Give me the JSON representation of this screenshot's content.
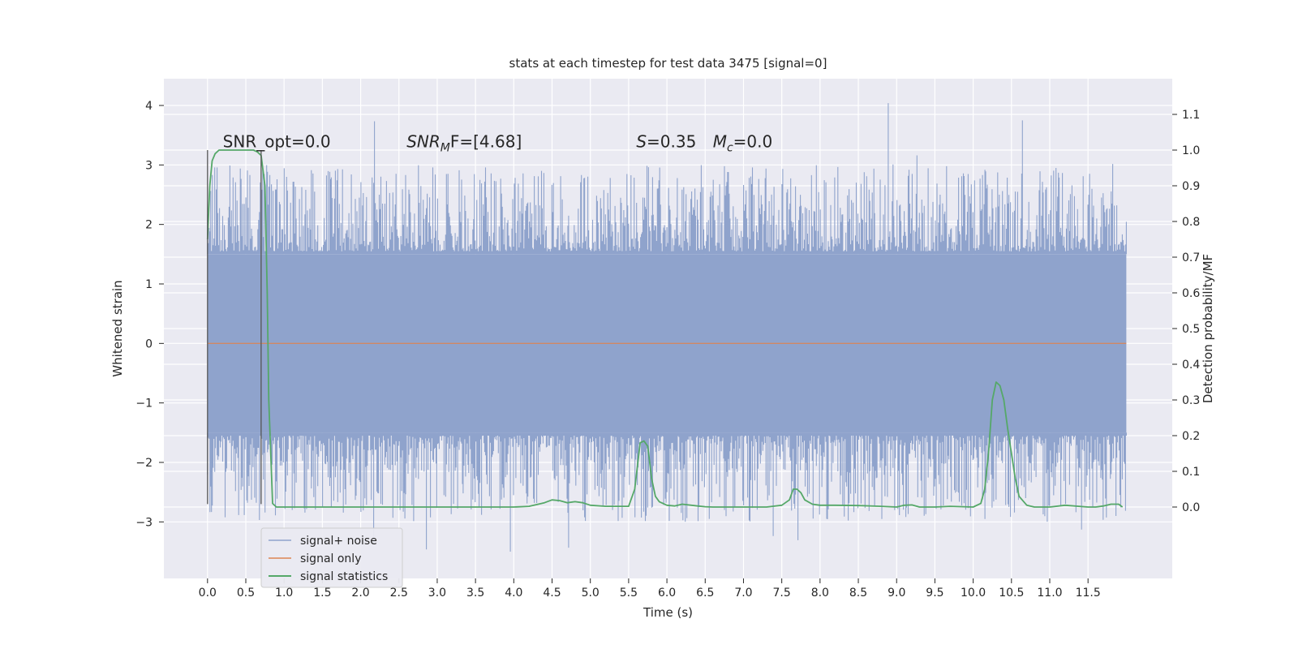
{
  "chart_data": {
    "type": "line",
    "title": "stats at each timestep for test data 3475 [signal=0]",
    "xlabel": "Time (s)",
    "ylabel": "Whitened strain",
    "ylabel_right": "Detection probability/MF",
    "xlim": [
      -0.57,
      12.6
    ],
    "ylim": [
      -3.95,
      4.45
    ],
    "ylim_right": [
      -0.2,
      1.2
    ],
    "x_ticks": [
      0.0,
      0.5,
      1.0,
      1.5,
      2.0,
      2.5,
      3.0,
      3.5,
      4.0,
      4.5,
      5.0,
      5.5,
      6.0,
      6.5,
      7.0,
      7.5,
      8.0,
      8.5,
      9.0,
      9.5,
      10.0,
      10.5,
      11.0,
      11.5
    ],
    "x_tick_labels": [
      "0.0",
      "0.5",
      "1.0",
      "1.5",
      "2.0",
      "2.5",
      "3.0",
      "3.5",
      "4.0",
      "4.5",
      "5.0",
      "5.5",
      "6.0",
      "6.5",
      "7.0",
      "7.5",
      "8.0",
      "8.5",
      "9.0",
      "9.5",
      "10.0",
      "10.5",
      "11.0",
      "11.5"
    ],
    "y_ticks": [
      -3,
      -2,
      -1,
      0,
      1,
      2,
      3,
      4
    ],
    "y_tick_labels": [
      "−3",
      "−2",
      "−1",
      "0",
      "1",
      "2",
      "3",
      "4"
    ],
    "y_right_ticks": [
      0.0,
      0.1,
      0.2,
      0.3,
      0.4,
      0.5,
      0.6,
      0.7,
      0.8,
      0.9,
      1.0,
      1.1
    ],
    "y_right_tick_labels": [
      "0.0",
      "0.1",
      "0.2",
      "0.3",
      "0.4",
      "0.5",
      "0.6",
      "0.7",
      "0.8",
      "0.9",
      "1.0",
      "1.1"
    ],
    "grid": true,
    "legend_placement": "lower-left",
    "noise_band": {
      "x_start": 0.0,
      "x_end": 12.0,
      "typical_min": -1.5,
      "typical_max": 1.5,
      "extreme_min": -3.5,
      "extreme_max": 4.1
    },
    "marker_lines": [
      {
        "x": 0.0,
        "y_min": -2.7,
        "y_max": 3.25
      },
      {
        "x": 0.7,
        "y_min": -2.7,
        "y_max": 3.25
      }
    ],
    "series": [
      {
        "name": "signal+ noise",
        "color": "#8fa3cc",
        "style": "noise-band"
      },
      {
        "name": "signal only",
        "color": "#dd8452",
        "style": "flat",
        "y": 0.0
      },
      {
        "name": "signal statistics",
        "color": "#55a868",
        "axis": "right",
        "x": [
          0.0,
          0.03,
          0.06,
          0.1,
          0.15,
          0.2,
          0.3,
          0.4,
          0.5,
          0.6,
          0.65,
          0.7,
          0.75,
          0.78,
          0.8,
          0.85,
          0.9,
          0.95,
          1.0,
          1.5,
          2.0,
          2.5,
          3.0,
          3.5,
          4.0,
          4.2,
          4.4,
          4.5,
          4.6,
          4.7,
          4.8,
          4.9,
          5.0,
          5.2,
          5.5,
          5.58,
          5.65,
          5.7,
          5.75,
          5.8,
          5.85,
          5.9,
          6.0,
          6.1,
          6.2,
          6.4,
          6.5,
          6.6,
          6.8,
          7.0,
          7.3,
          7.5,
          7.6,
          7.65,
          7.7,
          7.75,
          7.8,
          7.9,
          8.0,
          8.2,
          8.5,
          8.8,
          9.0,
          9.1,
          9.2,
          9.3,
          9.5,
          9.7,
          10.0,
          10.1,
          10.15,
          10.2,
          10.25,
          10.3,
          10.35,
          10.4,
          10.45,
          10.5,
          10.55,
          10.6,
          10.7,
          10.8,
          11.0,
          11.2,
          11.5,
          11.6,
          11.7,
          11.8,
          11.9,
          11.95
        ],
        "values": [
          0.75,
          0.9,
          0.97,
          0.99,
          1.0,
          1.0,
          1.0,
          1.0,
          1.0,
          1.0,
          0.995,
          0.985,
          0.9,
          0.6,
          0.3,
          0.01,
          0.0,
          0.0,
          0.0,
          0.0,
          0.0,
          0.0,
          0.0,
          0.0,
          0.0,
          0.002,
          0.012,
          0.02,
          0.018,
          0.012,
          0.015,
          0.012,
          0.005,
          0.002,
          0.002,
          0.05,
          0.18,
          0.185,
          0.17,
          0.08,
          0.03,
          0.015,
          0.005,
          0.003,
          0.008,
          0.003,
          0.001,
          0.0,
          0.0,
          0.0,
          0.0,
          0.005,
          0.02,
          0.05,
          0.05,
          0.04,
          0.02,
          0.008,
          0.005,
          0.005,
          0.004,
          0.002,
          0.0,
          0.005,
          0.006,
          0.0,
          0.0,
          0.002,
          0.0,
          0.01,
          0.05,
          0.15,
          0.3,
          0.35,
          0.34,
          0.3,
          0.22,
          0.15,
          0.08,
          0.03,
          0.005,
          0.0,
          0.0,
          0.005,
          0.0,
          0.0,
          0.003,
          0.008,
          0.008,
          0.0
        ]
      }
    ],
    "annotations": [
      {
        "text": "SNR_opt=0.0",
        "x": 0.2,
        "y": 3.3
      },
      {
        "text": "SNR",
        "sub": "M",
        "tail": "F=[4.68]",
        "italic": true,
        "x": 2.6,
        "y": 3.3
      },
      {
        "text": "S",
        "tail": "=0.35",
        "italic": true,
        "x": 5.6,
        "y": 3.3
      },
      {
        "text": "M",
        "sub": "c",
        "tail": "=0.0",
        "italic": true,
        "x": 6.6,
        "y": 3.3
      }
    ]
  },
  "colors": {
    "plot_background": "#eaeaf2",
    "grid": "#ffffff",
    "marker": "#555555",
    "legend_background": "#eaeaf2",
    "legend_border": "#cccccc"
  }
}
